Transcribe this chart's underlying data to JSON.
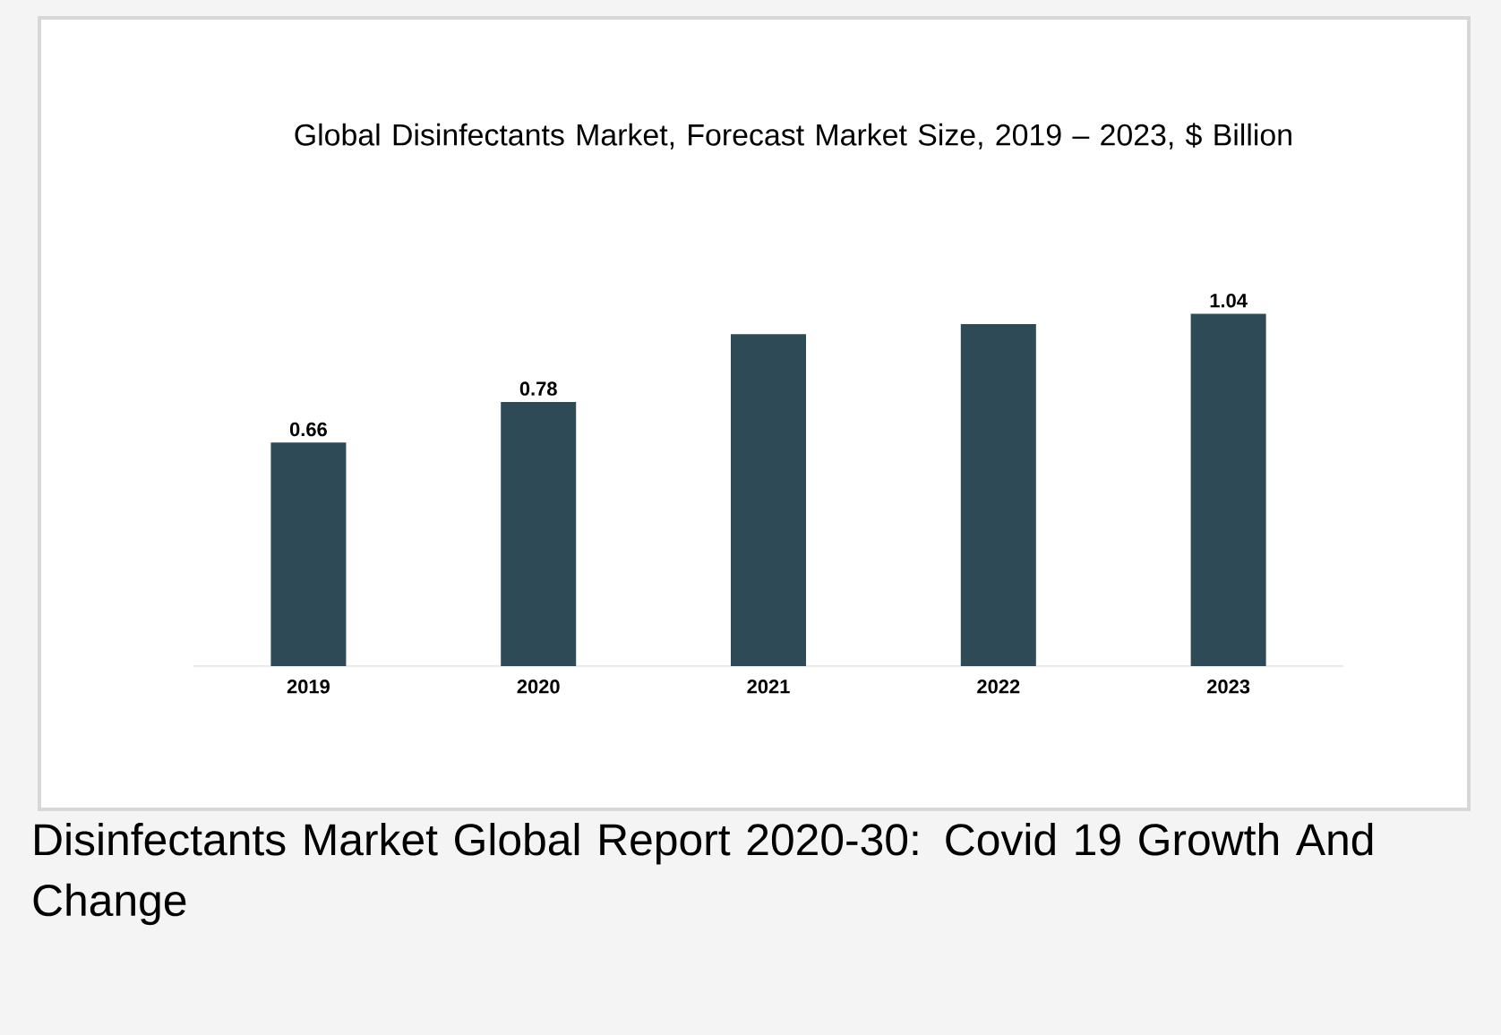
{
  "chart_data": {
    "type": "bar",
    "title": "Global Disinfectants Market, Forecast Market Size, 2019 – 2023, $ Billion",
    "categories": [
      "2019",
      "2020",
      "2021",
      "2022",
      "2023"
    ],
    "values": [
      0.66,
      0.78,
      0.98,
      1.01,
      1.04
    ],
    "value_labels": [
      "0.66",
      "0.78",
      null,
      null,
      "1.04"
    ],
    "color": "#2e4a57",
    "annotations": [
      "Disinfectants Market Global Report 2020-30: Covid 19 Growth And Change"
    ]
  }
}
